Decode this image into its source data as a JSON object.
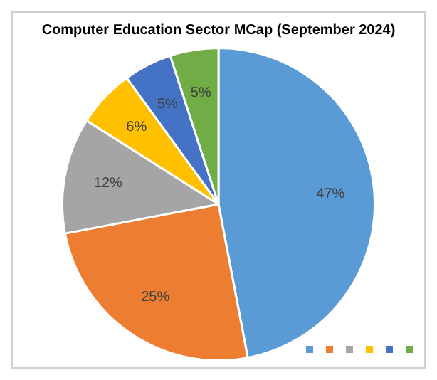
{
  "chart_data": {
    "type": "pie",
    "title": "Computer Education Sector MCap (September 2024)",
    "categories": [
      null,
      null,
      null,
      null,
      null,
      null
    ],
    "values": [
      47,
      25,
      12,
      6,
      5,
      5
    ],
    "value_labels": [
      "47%",
      "25%",
      "12%",
      "6%",
      "5%",
      "5%"
    ],
    "colors": [
      "#5b9bd5",
      "#ed7d31",
      "#a5a5a5",
      "#ffc000",
      "#4472c4",
      "#70ad47"
    ]
  }
}
